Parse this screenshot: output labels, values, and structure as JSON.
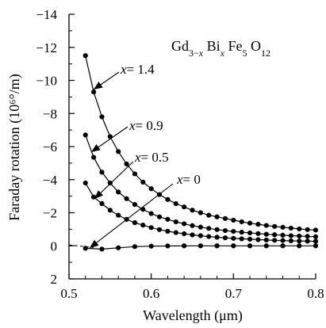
{
  "chart_data": {
    "type": "line",
    "title": {
      "parts": [
        {
          "text": "Gd",
          "sub": false,
          "italic": false
        },
        {
          "text": "3−",
          "sub": true,
          "italic": false
        },
        {
          "text": "x",
          "sub": true,
          "italic": true
        },
        {
          "text": " Bi",
          "sub": false,
          "italic": false
        },
        {
          "text": "x",
          "sub": true,
          "italic": true
        },
        {
          "text": " Fe",
          "sub": false,
          "italic": false
        },
        {
          "text": "5",
          "sub": true,
          "italic": false
        },
        {
          "text": " O",
          "sub": false,
          "italic": false
        },
        {
          "text": "12",
          "sub": true,
          "italic": false
        }
      ]
    },
    "xlabel": "Wavelength (μm)",
    "ylabel": "Faraday rotation (10⁶°/m)",
    "xlim": [
      0.5,
      0.8
    ],
    "ylim": [
      2,
      -14
    ],
    "x_ticks": [
      "0.5",
      "0.6",
      "0.7",
      "0.8"
    ],
    "y_ticks": [
      "−14",
      "−12",
      "−10",
      "−8",
      "−6",
      "−4",
      "−2",
      "0",
      "2"
    ],
    "x_tick_values": [
      0.5,
      0.6,
      0.7,
      0.8
    ],
    "y_tick_values": [
      -14,
      -12,
      -10,
      -8,
      -6,
      -4,
      -2,
      0,
      2
    ],
    "grid": false,
    "series": [
      {
        "name_var": "x",
        "name_value": "= 1.4",
        "x": [
          0.52,
          0.53,
          0.54,
          0.55,
          0.56,
          0.57,
          0.58,
          0.59,
          0.6,
          0.61,
          0.62,
          0.63,
          0.64,
          0.65,
          0.66,
          0.67,
          0.68,
          0.69,
          0.7,
          0.71,
          0.72,
          0.73,
          0.74,
          0.75,
          0.76,
          0.77,
          0.78,
          0.79,
          0.8
        ],
        "y": [
          -11.5,
          -9.3,
          -7.8,
          -6.6,
          -5.7,
          -4.95,
          -4.35,
          -3.85,
          -3.45,
          -3.1,
          -2.8,
          -2.55,
          -2.35,
          -2.15,
          -2.0,
          -1.85,
          -1.75,
          -1.65,
          -1.55,
          -1.45,
          -1.37,
          -1.3,
          -1.23,
          -1.17,
          -1.12,
          -1.07,
          -1.02,
          -0.98,
          -0.95
        ]
      },
      {
        "name_var": "x",
        "name_value": "= 0.9",
        "x": [
          0.52,
          0.53,
          0.54,
          0.55,
          0.56,
          0.57,
          0.58,
          0.59,
          0.6,
          0.61,
          0.62,
          0.63,
          0.64,
          0.65,
          0.66,
          0.67,
          0.68,
          0.69,
          0.7,
          0.71,
          0.72,
          0.73,
          0.74,
          0.75,
          0.76,
          0.77,
          0.78,
          0.79,
          0.8
        ],
        "y": [
          -6.7,
          -5.35,
          -4.45,
          -3.8,
          -3.25,
          -2.85,
          -2.5,
          -2.2,
          -1.95,
          -1.75,
          -1.6,
          -1.45,
          -1.33,
          -1.22,
          -1.13,
          -1.05,
          -0.98,
          -0.92,
          -0.87,
          -0.82,
          -0.78,
          -0.74,
          -0.7,
          -0.67,
          -0.64,
          -0.61,
          -0.59,
          -0.57,
          -0.55
        ]
      },
      {
        "name_var": "x",
        "name_value": "= 0.5",
        "x": [
          0.52,
          0.53,
          0.54,
          0.55,
          0.56,
          0.57,
          0.58,
          0.59,
          0.6,
          0.61,
          0.62,
          0.63,
          0.64,
          0.65,
          0.66,
          0.67,
          0.68,
          0.69,
          0.7,
          0.71,
          0.72,
          0.73,
          0.74,
          0.75,
          0.76,
          0.77,
          0.78,
          0.79,
          0.8
        ],
        "y": [
          -3.8,
          -2.95,
          -2.55,
          -2.15,
          -1.85,
          -1.6,
          -1.4,
          -1.25,
          -1.1,
          -0.98,
          -0.88,
          -0.8,
          -0.73,
          -0.66,
          -0.61,
          -0.56,
          -0.52,
          -0.48,
          -0.45,
          -0.42,
          -0.4,
          -0.37,
          -0.35,
          -0.33,
          -0.32,
          -0.3,
          -0.29,
          -0.28,
          -0.27
        ]
      },
      {
        "name_var": "x",
        "name_value": "= 0",
        "x": [
          0.52,
          0.54,
          0.56,
          0.58,
          0.6,
          0.62,
          0.64,
          0.66,
          0.68,
          0.7,
          0.72,
          0.74,
          0.76,
          0.78,
          0.8
        ],
        "y": [
          0.15,
          0.2,
          0.12,
          0.05,
          0.02,
          0.01,
          0.0,
          0.0,
          0.0,
          0.0,
          0.0,
          0.0,
          0.0,
          0.0,
          0.0
        ]
      }
    ],
    "dashed_reference": {
      "x": [
        0.5,
        0.53
      ],
      "y": [
        -0.05,
        0.1
      ]
    }
  }
}
